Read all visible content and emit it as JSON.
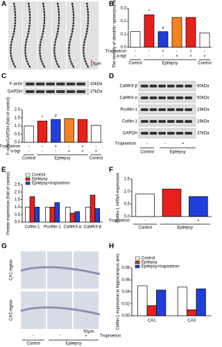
{
  "panel_letters": [
    "A",
    "B",
    "C",
    "D",
    "E",
    "F",
    "G",
    "H"
  ],
  "images": {
    "A": {
      "scale": "5μm"
    },
    "G": {
      "regions": [
        "CA1 region",
        "CA3 region"
      ],
      "scale": "50μm",
      "signs": [
        "-",
        "-",
        "+"
      ],
      "sign_label": "Tropisetron",
      "groups": [
        "Control",
        "Epilepsy"
      ]
    }
  },
  "blots": {
    "C": {
      "rows": [
        {
          "label": "F-actin",
          "kda": "43kDa"
        },
        {
          "label": "GAPDH",
          "kda": "37kDa"
        }
      ]
    },
    "D": {
      "rows": [
        {
          "label": "CaMKII-β",
          "kda": "60kDa"
        },
        {
          "label": "CaMKII-α",
          "kda": "50kDa"
        },
        {
          "label": "Pcofilin-1",
          "kda": "19kDa"
        },
        {
          "label": "Cofilin-1",
          "kda": "19kDa"
        },
        {
          "label": "GAPDH",
          "kda": "37kDa"
        }
      ],
      "sign_label": "Tropisetron",
      "signs": [
        "-",
        "-",
        "+"
      ],
      "groups": [
        "Control",
        "Epilepsy"
      ]
    }
  },
  "chart_data": [
    {
      "type": "bar",
      "ylabel": "The density of dendritic spines(number/μm)",
      "values": [
        0.12,
        0.25,
        0.12,
        0.23,
        0.23,
        0.11
      ],
      "colors": [
        "#ffffff",
        "#e8201c",
        "#1f3fd8",
        "#f58220",
        "#e8201c",
        "#ffffff"
      ],
      "sig": [
        null,
        "*",
        "#",
        null,
        null,
        null
      ],
      "rows": [
        {
          "label": "Tropisetron",
          "signs": [
            "-",
            "-",
            "+",
            "-",
            "+",
            "-"
          ]
        },
        {
          "label": "α-bgt",
          "signs": [
            "-",
            "-",
            "-",
            "+",
            "+",
            "+"
          ]
        }
      ],
      "group_labels": [
        "Control",
        "Epilepsy",
        "Control"
      ],
      "ylim": [
        0,
        0.3
      ],
      "yticks": [
        {
          "value": 0,
          "label": "0.0"
        },
        {
          "value": 0.1,
          "label": "0.1"
        },
        {
          "value": 0.2,
          "label": "0.2"
        },
        {
          "value": 0.3,
          "label": "0.3"
        }
      ]
    },
    {
      "type": "bar",
      "ylabel": "F-actin/GAPDH (fold of control)",
      "values": [
        1.0,
        1.3,
        1.4,
        1.45,
        1.4,
        1.05
      ],
      "colors": [
        "#ffffff",
        "#e8201c",
        "#1f3fd8",
        "#f58220",
        "#e8201c",
        "#ffffff"
      ],
      "sig": [
        null,
        "*",
        "#",
        null,
        null,
        null
      ],
      "rows": [
        {
          "label": "Tropisetron",
          "signs": [
            "-",
            "-",
            "+",
            "-",
            "+",
            "-"
          ]
        },
        {
          "label": "α-bgt",
          "signs": [
            "-",
            "-",
            "-",
            "+",
            "+",
            "+"
          ]
        }
      ],
      "group_labels": [
        "Control",
        "Epilepsy",
        "Control"
      ],
      "ylim": [
        0,
        2
      ],
      "yticks": [
        {
          "value": 0,
          "label": "0.0"
        },
        {
          "value": 0.5,
          "label": "0.5"
        },
        {
          "value": 1,
          "label": "1.0"
        },
        {
          "value": 1.5,
          "label": "1.5"
        },
        {
          "value": 2,
          "label": "2.0"
        }
      ]
    },
    {
      "type": "grouped_bar",
      "ylabel": "Protein expression (fold of control)",
      "categories": [
        "Cofilin-1",
        "Pcofilin-1",
        "CaMKII-α",
        "CaMKII-β"
      ],
      "series": [
        {
          "name": "Control",
          "color": "#ffffff",
          "values": [
            1.0,
            1.0,
            1.0,
            1.0
          ]
        },
        {
          "name": "Epilepsy",
          "color": "#e8201c",
          "values": [
            1.7,
            1.0,
            0.6,
            1.8
          ]
        },
        {
          "name": "Epilepsy+tropisetron",
          "color": "#1f3fd8",
          "values": [
            1.0,
            1.3,
            0.7,
            0.9
          ]
        }
      ],
      "ylim": [
        0,
        2.5
      ],
      "yticks": [
        {
          "value": 0,
          "label": "0.0"
        },
        {
          "value": 0.5,
          "label": "0.5"
        },
        {
          "value": 1,
          "label": "1.0"
        },
        {
          "value": 1.5,
          "label": "1.5"
        },
        {
          "value": 2,
          "label": "2.0"
        },
        {
          "value": 2.5,
          "label": "2.5"
        }
      ]
    },
    {
      "type": "bar",
      "ylabel": "Cofilin-1 mRNA expression",
      "values": [
        0.9,
        1.1,
        0.8
      ],
      "colors": [
        "#ffffff",
        "#e8201c",
        "#1f3fd8"
      ],
      "sig": [
        null,
        null,
        null
      ],
      "rows": [
        {
          "label": "Tropisetron",
          "signs": [
            "-",
            "-",
            "+"
          ]
        }
      ],
      "group_labels": [
        "Control",
        "Epilepsy"
      ],
      "ylim": [
        0,
        1.5
      ],
      "yticks": [
        {
          "value": 0,
          "label": "0.0"
        },
        {
          "value": 0.5,
          "label": "0.5"
        },
        {
          "value": 1,
          "label": "1.0"
        },
        {
          "value": 1.5,
          "label": "1.5"
        }
      ]
    },
    {
      "type": "grouped_bar",
      "ylabel": "Cofilin-1 expression in hippocampus area",
      "categories": [
        "CA1",
        "CA3"
      ],
      "series": [
        {
          "name": "Control",
          "color": "#ffffff",
          "values": [
            0.05,
            0.048
          ]
        },
        {
          "name": "Epilepsy",
          "color": "#e8201c",
          "values": [
            0.017,
            0.01
          ]
        },
        {
          "name": "Epilepsy+tropisetron",
          "color": "#1f3fd8",
          "values": [
            0.043,
            0.045
          ]
        }
      ],
      "ylim": [
        0,
        0.08
      ],
      "yticks": [
        {
          "value": 0,
          "label": "0.00"
        },
        {
          "value": 0.02,
          "label": "0.02"
        },
        {
          "value": 0.04,
          "label": "0.04"
        },
        {
          "value": 0.06,
          "label": "0.06"
        },
        {
          "value": 0.08,
          "label": "0.08"
        }
      ]
    }
  ]
}
